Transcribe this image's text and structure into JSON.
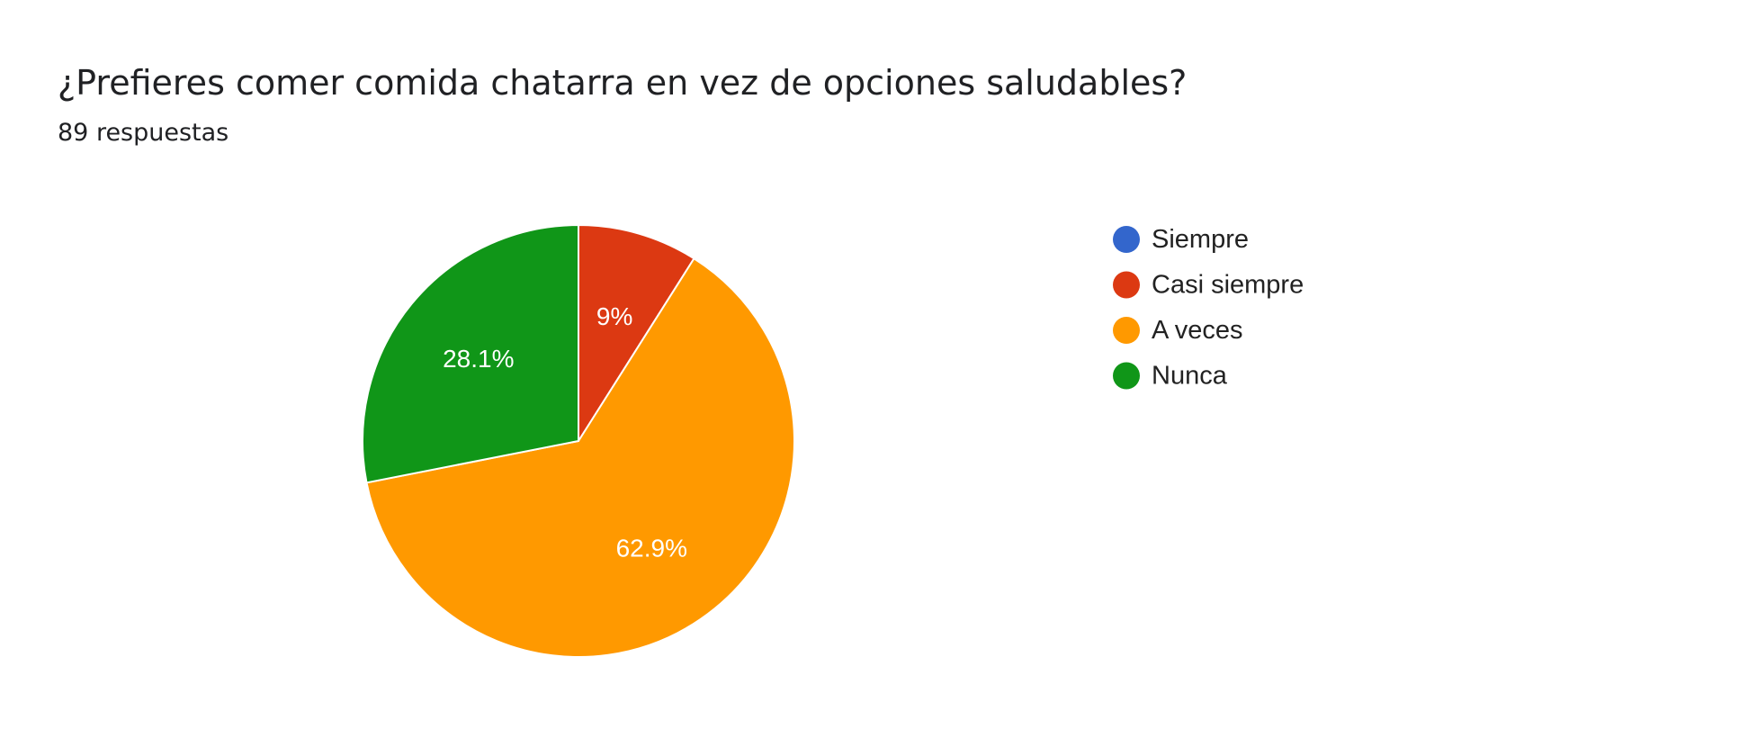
{
  "header": {
    "title": "¿Prefieres comer comida chatarra en vez de opciones saludables?",
    "subtitle": "89 respuestas"
  },
  "chart_data": {
    "type": "pie",
    "title": "¿Prefieres comer comida chatarra en vez de opciones saludables?",
    "total_responses": 89,
    "legend_position": "right",
    "slices": [
      {
        "label": "Siempre",
        "value": 0,
        "percent_label": "",
        "color": "#3366cc"
      },
      {
        "label": "Casi siempre",
        "value": 8,
        "percent_label": "9%",
        "color": "#dc3912"
      },
      {
        "label": "A veces",
        "value": 56,
        "percent_label": "62.9%",
        "color": "#ff9900"
      },
      {
        "label": "Nunca",
        "value": 25,
        "percent_label": "28.1%",
        "color": "#109618"
      }
    ]
  }
}
